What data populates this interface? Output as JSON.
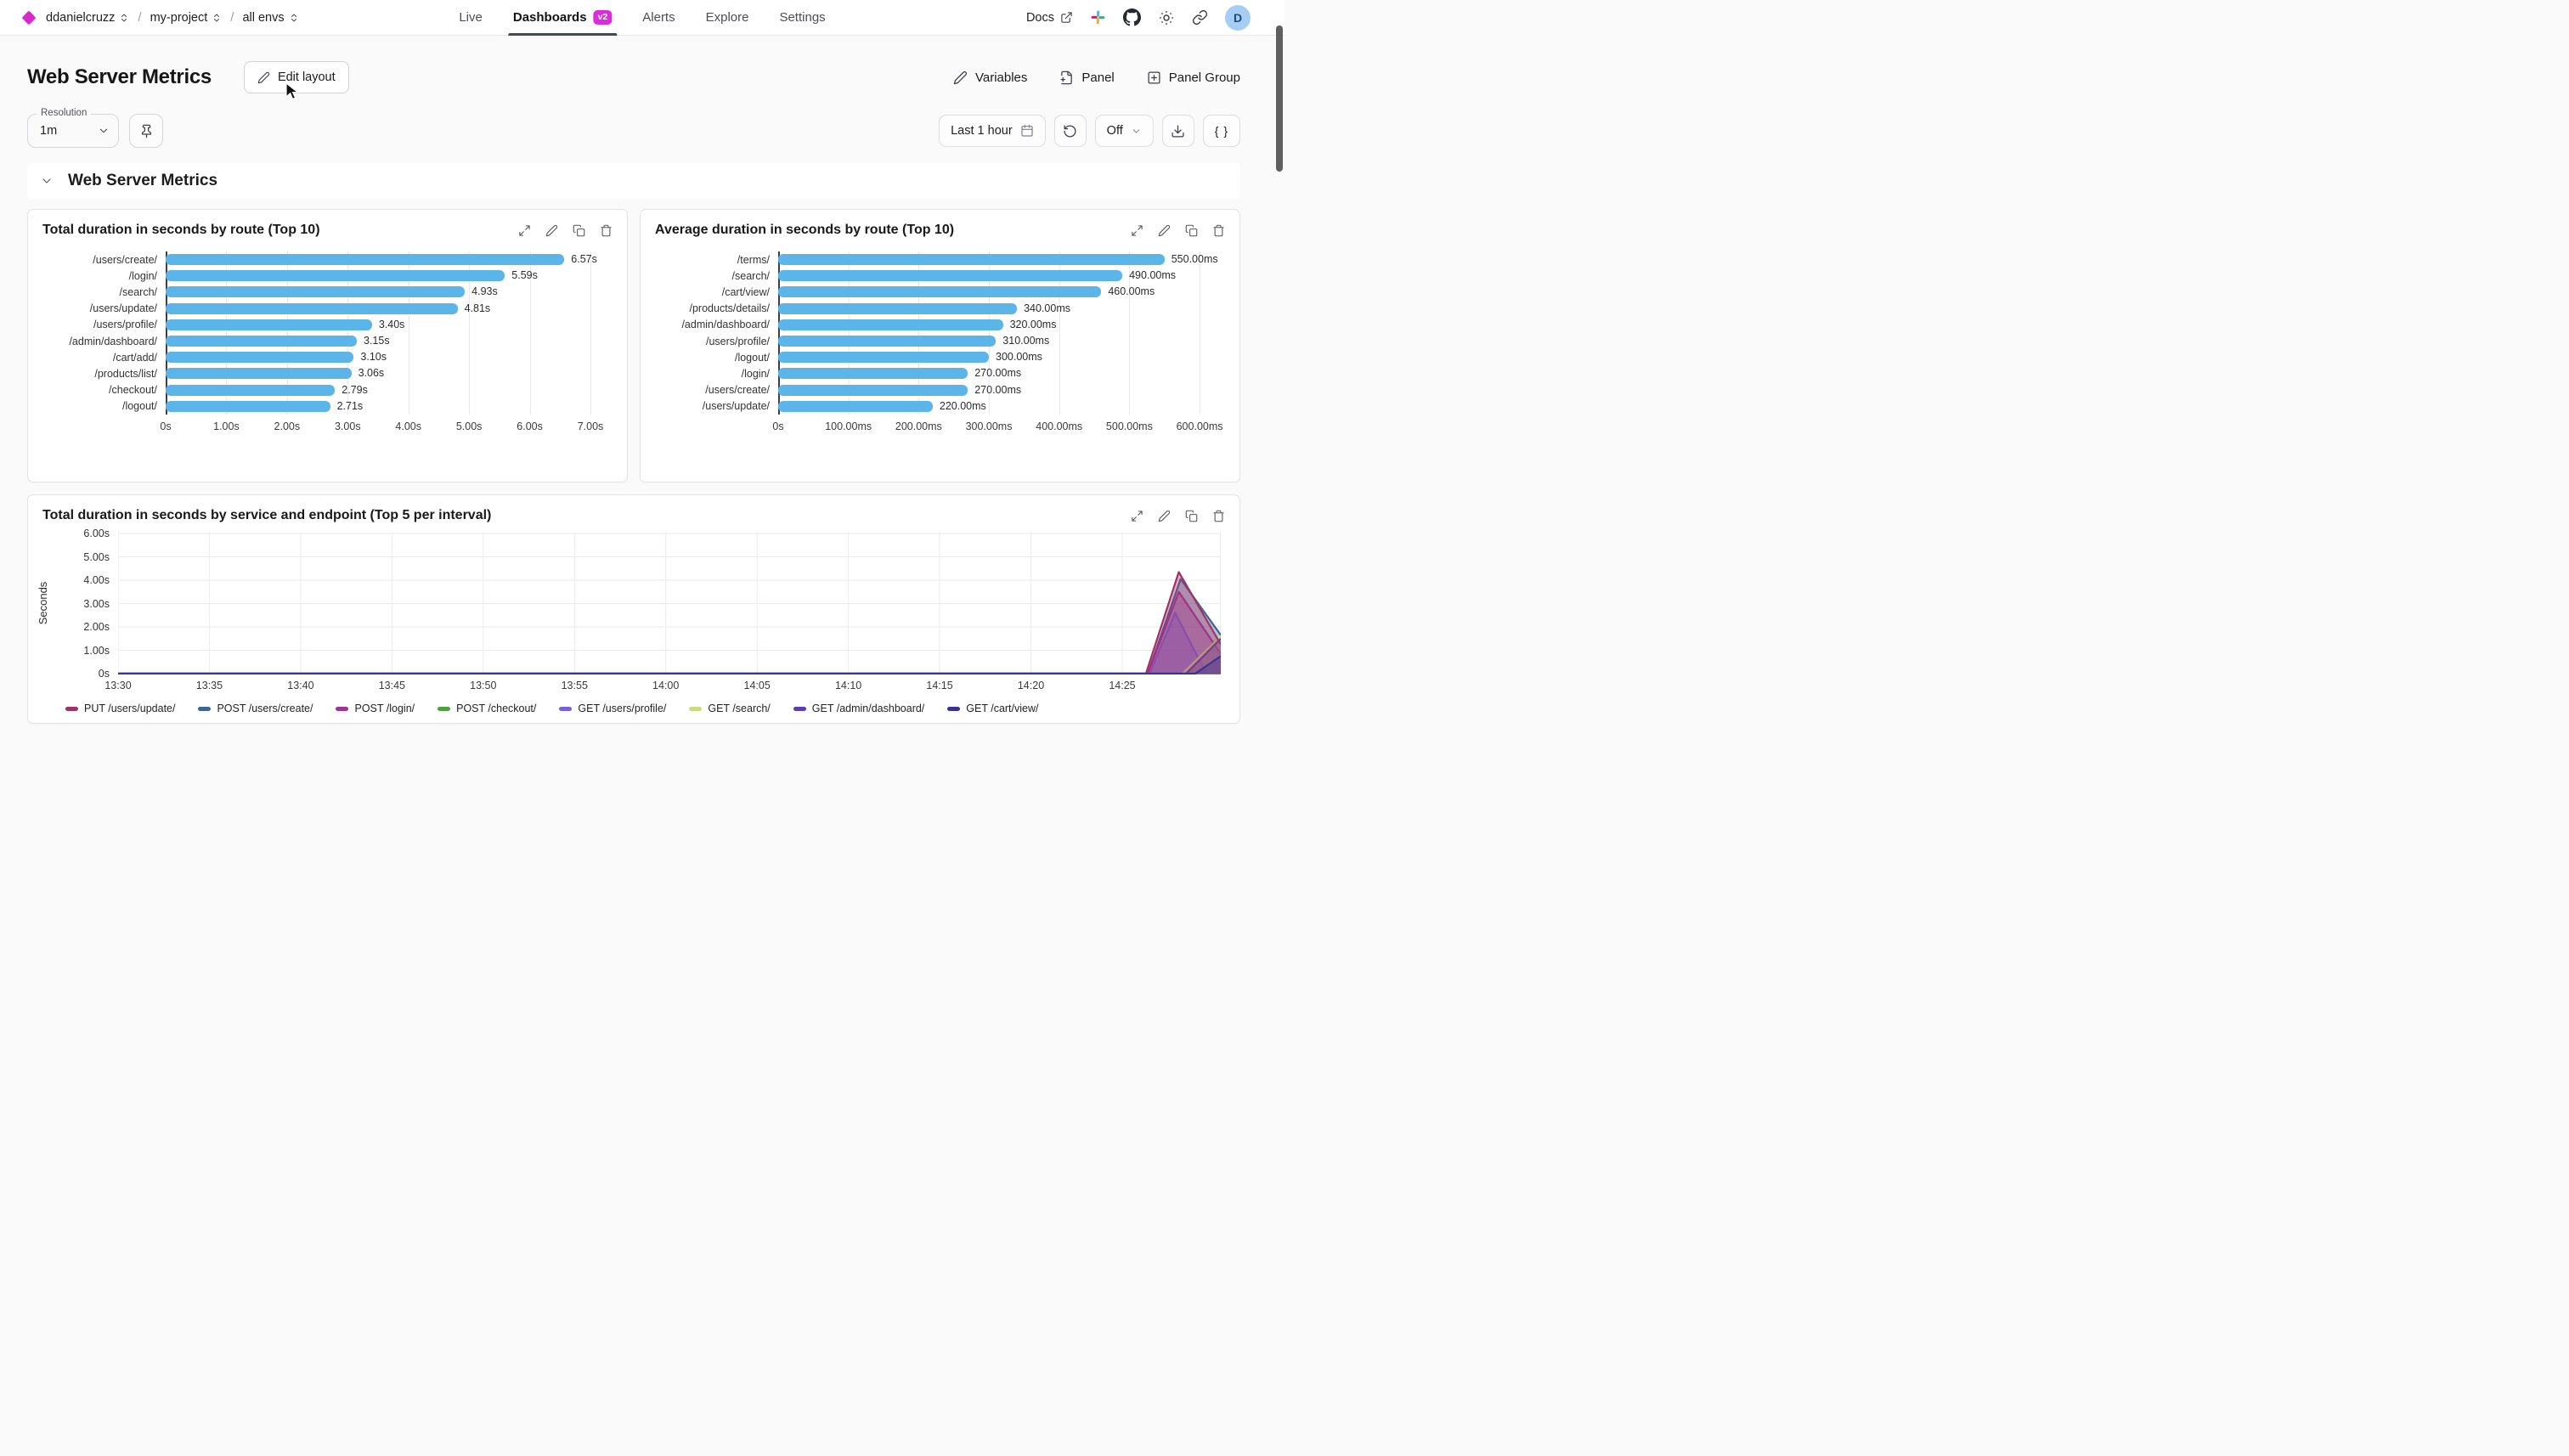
{
  "nav": {
    "breadcrumb": {
      "org": "ddanielcruzz",
      "project": "my-project",
      "env": "all envs"
    },
    "tabs": [
      {
        "label": "Live",
        "active": false
      },
      {
        "label": "Dashboards",
        "active": true,
        "badge": "v2"
      },
      {
        "label": "Alerts",
        "active": false
      },
      {
        "label": "Explore",
        "active": false
      },
      {
        "label": "Settings",
        "active": false
      }
    ],
    "docs_label": "Docs",
    "avatar_letter": "D"
  },
  "header": {
    "title": "Web Server Metrics",
    "edit_layout_label": "Edit layout",
    "variables_label": "Variables",
    "panel_label": "Panel",
    "panel_group_label": "Panel Group"
  },
  "toolbar": {
    "resolution_label": "Resolution",
    "resolution_value": "1m",
    "time_range_label": "Last 1 hour",
    "refresh_mode_label": "Off",
    "braces_label": "{ }"
  },
  "section": {
    "title": "Web Server Metrics"
  },
  "colors": {
    "accent_magenta": "#DC2BDC",
    "bar_blue": "#5CB5E8",
    "active_tab_underline": "#3E4A59",
    "avatar_bg": "#A6CEF2"
  },
  "chart_data": [
    {
      "id": "total-duration-by-route",
      "type": "bar",
      "orientation": "horizontal",
      "title": "Total duration in seconds by route (Top 10)",
      "categories": [
        "/users/create/",
        "/login/",
        "/search/",
        "/users/update/",
        "/users/profile/",
        "/admin/dashboard/",
        "/cart/add/",
        "/products/list/",
        "/checkout/",
        "/logout/"
      ],
      "values": [
        6.57,
        5.59,
        4.93,
        4.81,
        3.4,
        3.15,
        3.1,
        3.06,
        2.79,
        2.71
      ],
      "value_labels": [
        "6.57s",
        "5.59s",
        "4.93s",
        "4.81s",
        "3.40s",
        "3.15s",
        "3.10s",
        "3.06s",
        "2.79s",
        "2.71s"
      ],
      "x_ticks": [
        "0s",
        "1.00s",
        "2.00s",
        "3.00s",
        "4.00s",
        "5.00s",
        "6.00s",
        "7.00s"
      ],
      "x_tick_values": [
        0,
        1,
        2,
        3,
        4,
        5,
        6,
        7
      ],
      "x_max": 7.35,
      "bar_color": "#5CB5E8",
      "grid": true
    },
    {
      "id": "average-duration-by-route",
      "type": "bar",
      "orientation": "horizontal",
      "title": "Average duration in seconds by route (Top 10)",
      "categories": [
        "/terms/",
        "/search/",
        "/cart/view/",
        "/products/details/",
        "/admin/dashboard/",
        "/users/profile/",
        "/logout/",
        "/login/",
        "/users/create/",
        "/users/update/"
      ],
      "values": [
        550,
        490,
        460,
        340,
        320,
        310,
        300,
        270,
        270,
        220
      ],
      "value_labels": [
        "550.00ms",
        "490.00ms",
        "460.00ms",
        "340.00ms",
        "320.00ms",
        "310.00ms",
        "300.00ms",
        "270.00ms",
        "270.00ms",
        "220.00ms"
      ],
      "x_ticks": [
        "0s",
        "100.00ms",
        "200.00ms",
        "300.00ms",
        "400.00ms",
        "500.00ms",
        "600.00ms"
      ],
      "x_tick_values": [
        0,
        100,
        200,
        300,
        400,
        500,
        600
      ],
      "x_max": 635,
      "bar_color": "#5CB5E8",
      "grid": true
    },
    {
      "id": "duration-by-service-endpoint",
      "type": "area",
      "title": "Total duration in seconds by service and endpoint (Top 5 per interval)",
      "ylabel": "Seconds",
      "y_ticks": [
        "0s",
        "1.00s",
        "2.00s",
        "3.00s",
        "4.00s",
        "5.00s",
        "6.00s"
      ],
      "y_tick_values": [
        0,
        1,
        2,
        3,
        4,
        5,
        6
      ],
      "y_max": 6,
      "x_ticks": [
        "13:30",
        "13:35",
        "13:40",
        "13:45",
        "13:50",
        "13:55",
        "14:00",
        "14:05",
        "14:10",
        "14:15",
        "14:20",
        "14:25"
      ],
      "x_tick_minutes": [
        0,
        5,
        10,
        15,
        20,
        25,
        30,
        35,
        40,
        45,
        50,
        55
      ],
      "x_domain_minutes": 60.4,
      "grid": true,
      "legend_position": "bottom",
      "series": [
        {
          "name": "PUT /users/update/",
          "color": "#A03268",
          "points": [
            [
              0,
              0
            ],
            [
              56.3,
              0
            ],
            [
              58.1,
              4.35
            ],
            [
              60.4,
              1.25
            ]
          ]
        },
        {
          "name": "POST /users/create/",
          "color": "#3E6695",
          "points": [
            [
              0,
              0
            ],
            [
              56.4,
              0
            ],
            [
              58.2,
              4.05
            ],
            [
              60.4,
              1.65
            ]
          ]
        },
        {
          "name": "POST /login/",
          "color": "#A13398",
          "points": [
            [
              0,
              0
            ],
            [
              56.4,
              0
            ],
            [
              58.1,
              3.5
            ],
            [
              60.4,
              0.85
            ]
          ]
        },
        {
          "name": "POST /checkout/",
          "color": "#4FA03E",
          "points": [
            [
              0,
              0
            ],
            [
              60.4,
              0
            ]
          ]
        },
        {
          "name": "GET /users/profile/",
          "color": "#7A5FD6",
          "points": [
            [
              0,
              0
            ],
            [
              56.5,
              0
            ],
            [
              57.9,
              2.6
            ],
            [
              59.6,
              0
            ]
          ]
        },
        {
          "name": "GET /search/",
          "color": "#CBDC7D",
          "points": [
            [
              0,
              0
            ],
            [
              58.3,
              0
            ],
            [
              60.4,
              1.6
            ]
          ]
        },
        {
          "name": "GET /admin/dashboard/",
          "color": "#5C3EB0",
          "points": [
            [
              0,
              0
            ],
            [
              58.5,
              0
            ],
            [
              60.4,
              1.5
            ]
          ]
        },
        {
          "name": "GET /cart/view/",
          "color": "#3B3391",
          "points": [
            [
              0,
              0
            ],
            [
              59.0,
              0
            ],
            [
              60.4,
              0.75
            ]
          ]
        }
      ],
      "paint_order": [
        3,
        1,
        2,
        4,
        5,
        6,
        0,
        7
      ]
    }
  ]
}
